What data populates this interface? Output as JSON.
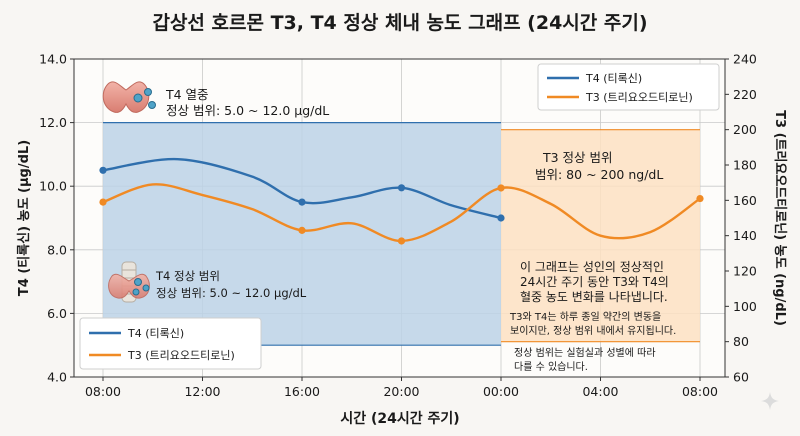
{
  "colors": {
    "t4": "#2f6fad",
    "t3": "#f08a24",
    "t4_range_fill": "#bcd2e6",
    "t3_range_fill": "#fde1c2",
    "grid": "#c9c9c9",
    "background": "#f8f6f3"
  },
  "chart_data": {
    "type": "line",
    "title": "갑상선 호르몬 T3, T4 정상 체내 농도 그래프 (24시간 주기)",
    "xlabel": "시간 (24시간 주기)",
    "ylabel_left": "T4 (티록신) 농도 (µg/dL)",
    "ylabel_right": "T3 (트리요오드티로닌) 농도 (ng/dL)",
    "x_ticks": [
      "08:00",
      "12:00",
      "16:00",
      "20:00",
      "00:00",
      "04:00",
      "08:00"
    ],
    "x_hours": [
      0,
      4,
      8,
      12,
      16,
      20,
      24
    ],
    "ylim_left": [
      4.0,
      14.0
    ],
    "yticks_left": [
      "4.0",
      "6.0",
      "8.0",
      "10.0",
      "12.0",
      "14.0"
    ],
    "ylim_right": [
      60,
      240
    ],
    "yticks_right": [
      "60",
      "80",
      "100",
      "120",
      "140",
      "160",
      "180",
      "200",
      "220",
      "240"
    ],
    "grid": true,
    "series": [
      {
        "name": "T4 (티록신)",
        "axis": "left",
        "markers": [
          [
            0,
            10.5
          ],
          [
            8,
            9.5
          ],
          [
            12,
            9.95
          ],
          [
            16,
            9.0
          ]
        ],
        "curve": [
          [
            0,
            10.5
          ],
          [
            3,
            10.85
          ],
          [
            6,
            10.3
          ],
          [
            8,
            9.5
          ],
          [
            10,
            9.65
          ],
          [
            12,
            9.95
          ],
          [
            14,
            9.4
          ],
          [
            16,
            9.0
          ]
        ]
      },
      {
        "name": "T3 (트리요오드티로닌)",
        "axis": "right",
        "markers": [
          [
            0,
            159
          ],
          [
            8,
            143
          ],
          [
            12,
            137
          ],
          [
            16,
            167
          ],
          [
            24,
            161
          ]
        ],
        "curve": [
          [
            0,
            159
          ],
          [
            2,
            169
          ],
          [
            4,
            163
          ],
          [
            6,
            155
          ],
          [
            8,
            143
          ],
          [
            10,
            147
          ],
          [
            12,
            137
          ],
          [
            14,
            148
          ],
          [
            16,
            167
          ],
          [
            18,
            158
          ],
          [
            20,
            140
          ],
          [
            22,
            142
          ],
          [
            24,
            161
          ]
        ]
      }
    ],
    "ranges": [
      {
        "series": "T4",
        "axis": "left",
        "x_start": 0,
        "x_end": 16,
        "y_low": 5.0,
        "y_high": 12.0
      },
      {
        "series": "T3",
        "axis": "right",
        "x_start": 16,
        "x_end": 24,
        "y_low": 80,
        "y_high": 200
      }
    ],
    "legend_right": {
      "position": "top-right",
      "items": [
        "T4 (티록신)",
        "T3 (트리요오드티로닌)"
      ]
    },
    "legend_left": {
      "position": "bottom-left",
      "items": [
        "T4 (티록신)",
        "T3 (트리요오드티로닌)"
      ]
    }
  },
  "annotations": {
    "t4_top_title": "T4 열중",
    "t4_top_range": "정상 범위: 5.0 ~ 12.0 µg/dL",
    "t4_low_title": "T4 정상 범위",
    "t4_low_range": "정상 범위: 5.0 ~ 12.0 µg/dL",
    "t3_title": "T3 정상 범위",
    "t3_range": "범위: 80 ~ 200 ng/dL",
    "info_main": [
      "이 그래프는 성인의 정상적인",
      "24시간 주기 동안 T3와 T4의",
      "혈중 농도 변화를 나타냅니다."
    ],
    "info_sub1": [
      "T3와 T4는 하루 종일 약간의 변동을",
      "보이지만, 정상 범위 내에서 유지됩니다."
    ],
    "info_sub2": [
      "정상 범위는 실험실과 성별에 따라",
      "다를 수 있습니다."
    ]
  }
}
